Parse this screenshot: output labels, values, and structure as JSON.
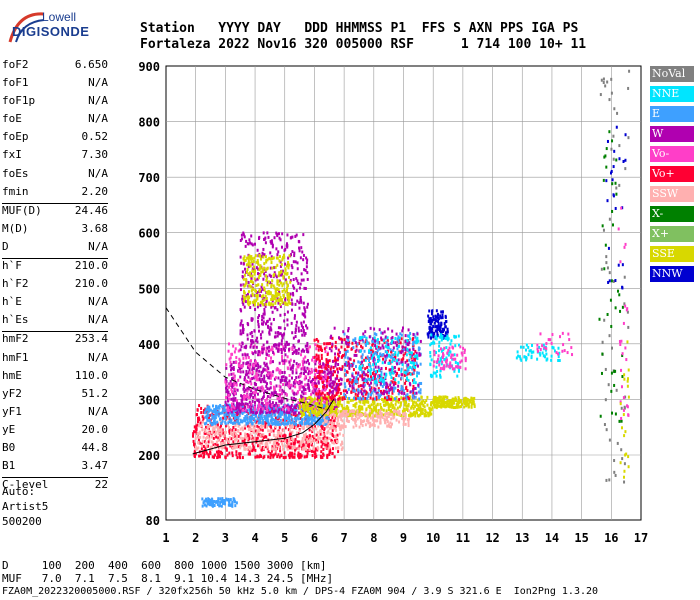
{
  "logo": {
    "line1": "Lowell",
    "line2": "DIGISONDE"
  },
  "header": {
    "line1": "Station   YYYY DAY   DDD HHMMSS P1  FFS S AXN PPS IGA PS",
    "line2": "Fortaleza 2022 Nov16 320 005000 RSF      1 714 100 10+ 11"
  },
  "params": [
    [
      {
        "name": "foF2",
        "value": "6.650"
      },
      {
        "name": "foF1",
        "value": "N/A"
      },
      {
        "name": "foF1p",
        "value": "N/A"
      },
      {
        "name": "foE",
        "value": "N/A"
      },
      {
        "name": "foEp",
        "value": "0.52"
      },
      {
        "name": "fxI",
        "value": "7.30"
      },
      {
        "name": "foEs",
        "value": "N/A"
      },
      {
        "name": "fmin",
        "value": "2.20"
      }
    ],
    [
      {
        "name": "MUF(D)",
        "value": "24.46"
      },
      {
        "name": "M(D)",
        "value": "3.68"
      },
      {
        "name": "D",
        "value": "N/A"
      }
    ],
    [
      {
        "name": "h`F",
        "value": "210.0"
      },
      {
        "name": "h`F2",
        "value": "210.0"
      },
      {
        "name": "h`E",
        "value": "N/A"
      },
      {
        "name": "h`Es",
        "value": "N/A"
      }
    ],
    [
      {
        "name": "hmF2",
        "value": "253.4"
      },
      {
        "name": "hmF1",
        "value": "N/A"
      },
      {
        "name": "hmE",
        "value": "110.0"
      },
      {
        "name": "yF2",
        "value": "51.2"
      },
      {
        "name": "yF1",
        "value": "N/A"
      },
      {
        "name": "yE",
        "value": "20.0"
      },
      {
        "name": "B0",
        "value": "44.8"
      },
      {
        "name": "B1",
        "value": "3.47"
      }
    ],
    [
      {
        "name": "C-level",
        "value": "22"
      }
    ]
  ],
  "auto": {
    "line1": "Auto:",
    "line2": "Artist5",
    "line3": "500200"
  },
  "footer": {
    "line1": "D     100  200  400  600  800 1000 1500 3000 [km]",
    "line2": "MUF   7.0  7.1  7.5  8.1  9.1 10.4 14.3 24.5 [MHz]",
    "line3": "FZA0M_2022320005000.RSF / 320fx256h 50 kHz 5.0 km / DPS-4 FZA0M 904 / 3.9 S 321.6 E  Ion2Png 1.3.20"
  },
  "chart_data": {
    "type": "scatter",
    "xlim": [
      1,
      17
    ],
    "ylim": [
      80,
      900
    ],
    "x_ticks": [
      1,
      2,
      3,
      4,
      5,
      6,
      7,
      8,
      9,
      10,
      11,
      12,
      13,
      14,
      15,
      16,
      17
    ],
    "y_ticks": [
      80,
      200,
      300,
      400,
      500,
      600,
      700,
      800,
      900
    ],
    "grid": true,
    "legend": {
      "placement": "right",
      "entries": [
        {
          "label": "NoVal",
          "color": "#808080"
        },
        {
          "label": "NNE",
          "color": "#00e5ff"
        },
        {
          "label": "E",
          "color": "#3ea0ff"
        },
        {
          "label": "W",
          "color": "#b000b0"
        },
        {
          "label": "Vo-",
          "color": "#ff3ec8"
        },
        {
          "label": "Vo+",
          "color": "#ff0033"
        },
        {
          "label": "SSW",
          "color": "#ffb0b0"
        },
        {
          "label": "X-",
          "color": "#008000"
        },
        {
          "label": "X+",
          "color": "#80c060"
        },
        {
          "label": "SSE",
          "color": "#d8d800"
        },
        {
          "label": "NNW",
          "color": "#0000d0"
        }
      ]
    },
    "clusters": [
      {
        "color": "#ff0033",
        "x": [
          1.9,
          6.8
        ],
        "y": [
          195,
          290
        ],
        "n": 700
      },
      {
        "color": "#ffb0b0",
        "x": [
          2.0,
          7.0
        ],
        "y": [
          210,
          260
        ],
        "n": 350
      },
      {
        "color": "#3ea0ff",
        "x": [
          2.3,
          6.5
        ],
        "y": [
          255,
          290
        ],
        "n": 500
      },
      {
        "color": "#b000b0",
        "x": [
          3.0,
          6.8
        ],
        "y": [
          275,
          370
        ],
        "n": 600
      },
      {
        "color": "#ff3ec8",
        "x": [
          3.0,
          6.5
        ],
        "y": [
          280,
          400
        ],
        "n": 300
      },
      {
        "color": "#b000b0",
        "x": [
          3.5,
          5.8
        ],
        "y": [
          380,
          600
        ],
        "n": 450
      },
      {
        "color": "#d8d800",
        "x": [
          3.6,
          5.2
        ],
        "y": [
          470,
          560
        ],
        "n": 260
      },
      {
        "color": "#d8d800",
        "x": [
          5.5,
          10.0
        ],
        "y": [
          270,
          305
        ],
        "n": 500
      },
      {
        "color": "#ffb0b0",
        "x": [
          6.3,
          9.2
        ],
        "y": [
          250,
          280
        ],
        "n": 180
      },
      {
        "color": "#ff0033",
        "x": [
          6.0,
          9.4
        ],
        "y": [
          300,
          410
        ],
        "n": 400
      },
      {
        "color": "#3ea0ff",
        "x": [
          7.0,
          9.6
        ],
        "y": [
          300,
          420
        ],
        "n": 220
      },
      {
        "color": "#b000b0",
        "x": [
          6.5,
          9.6
        ],
        "y": [
          310,
          430
        ],
        "n": 200
      },
      {
        "color": "#00e5ff",
        "x": [
          7.5,
          9.5
        ],
        "y": [
          330,
          420
        ],
        "n": 120
      },
      {
        "color": "#d8d800",
        "x": [
          10.0,
          11.4
        ],
        "y": [
          285,
          305
        ],
        "n": 180
      },
      {
        "color": "#0000d0",
        "x": [
          9.8,
          10.5
        ],
        "y": [
          410,
          460
        ],
        "n": 120
      },
      {
        "color": "#00e5ff",
        "x": [
          9.9,
          10.9
        ],
        "y": [
          340,
          420
        ],
        "n": 90
      },
      {
        "color": "#ff3ec8",
        "x": [
          10.0,
          11.1
        ],
        "y": [
          355,
          395
        ],
        "n": 60
      },
      {
        "color": "#3ea0ff",
        "x": [
          2.2,
          3.4
        ],
        "y": [
          105,
          120
        ],
        "n": 80
      },
      {
        "color": "#00e5ff",
        "x": [
          12.8,
          14.3
        ],
        "y": [
          370,
          400
        ],
        "n": 50
      },
      {
        "color": "#ff3ec8",
        "x": [
          13.5,
          14.7
        ],
        "y": [
          380,
          420
        ],
        "n": 25
      },
      {
        "color": "#808080",
        "x": [
          15.6,
          16.6
        ],
        "y": [
          150,
          900
        ],
        "n": 60
      },
      {
        "color": "#008000",
        "x": [
          15.6,
          16.4
        ],
        "y": [
          260,
          800
        ],
        "n": 40
      },
      {
        "color": "#0000d0",
        "x": [
          15.8,
          16.5
        ],
        "y": [
          500,
          800
        ],
        "n": 25
      },
      {
        "color": "#ff3ec8",
        "x": [
          16.2,
          16.6
        ],
        "y": [
          250,
          650
        ],
        "n": 25
      },
      {
        "color": "#d8d800",
        "x": [
          16.3,
          16.6
        ],
        "y": [
          150,
          450
        ],
        "n": 20
      }
    ],
    "curves": [
      {
        "style": "solid",
        "points": [
          [
            1.9,
            202
          ],
          [
            3,
            218
          ],
          [
            4,
            224
          ],
          [
            5,
            230
          ],
          [
            5.6,
            240
          ],
          [
            6.0,
            255
          ],
          [
            6.4,
            278
          ],
          [
            6.65,
            300
          ]
        ]
      },
      {
        "style": "dashed",
        "points": [
          [
            1,
            465
          ],
          [
            2,
            385
          ],
          [
            3,
            340
          ],
          [
            4,
            318
          ],
          [
            5,
            302
          ],
          [
            5.8,
            292
          ],
          [
            6.4,
            282
          ]
        ]
      }
    ]
  }
}
